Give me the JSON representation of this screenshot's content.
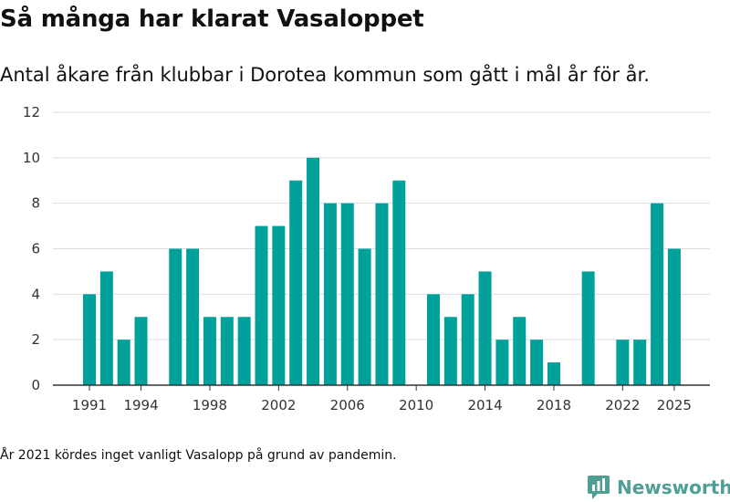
{
  "title": "Så många har klarat Vasaloppet",
  "subtitle": "Antal åkare från klubbar i Dorotea kommun som gått i mål år för år.",
  "note": "År 2021 kördes inget vanligt Vasalopp på grund av pandemin.",
  "brand": {
    "name": "Newsworthy",
    "color": "#4f9f95",
    "icon": "newsworthy-chart-icon"
  },
  "colors": {
    "bar": "#00a19a",
    "grid": "#dddddd",
    "axis": "#333333"
  },
  "chart_data": {
    "type": "bar",
    "title": "Så många har klarat Vasaloppet",
    "subtitle": "Antal åkare från klubbar i Dorotea kommun som gått i mål år för år.",
    "xlabel": "",
    "ylabel": "",
    "ylim": [
      0,
      12
    ],
    "yticks": [
      0,
      2,
      4,
      6,
      8,
      10,
      12
    ],
    "xtick_labels": [
      "1991",
      "1994",
      "1998",
      "2002",
      "2006",
      "2010",
      "2014",
      "2018",
      "2022",
      "2025"
    ],
    "grid": true,
    "legend": "none",
    "categories": [
      1991,
      1992,
      1993,
      1994,
      1996,
      1997,
      1998,
      1999,
      2000,
      2001,
      2002,
      2003,
      2004,
      2005,
      2006,
      2007,
      2008,
      2009,
      2011,
      2012,
      2013,
      2014,
      2015,
      2016,
      2017,
      2018,
      2020,
      2022,
      2023,
      2024,
      2025
    ],
    "values": [
      4,
      5,
      2,
      3,
      6,
      6,
      3,
      3,
      3,
      7,
      7,
      9,
      10,
      8,
      8,
      6,
      8,
      9,
      4,
      3,
      4,
      5,
      2,
      3,
      2,
      1,
      5,
      2,
      2,
      8,
      6
    ]
  }
}
